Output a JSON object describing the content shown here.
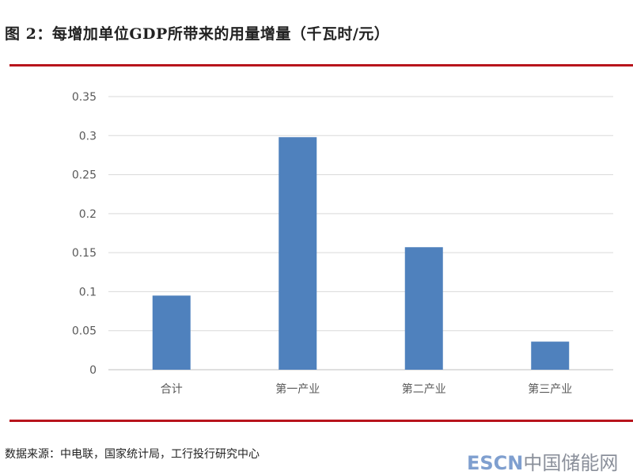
{
  "title": "图 2：每增加单位GDP所带来的用量增量（千瓦时/元）",
  "source": "数据来源：中电联，国家统计局，工行投行研究中心",
  "watermark": {
    "latin": "ESCN",
    "cn": "中国储能网"
  },
  "colors": {
    "bar": "#4f81bd",
    "rule": "#b8141c",
    "grid": "#d9d9d9"
  },
  "chart_data": {
    "type": "bar",
    "title": "每增加单位GDP所带来的用量增量（千瓦时/元）",
    "categories": [
      "合计",
      "第一产业",
      "第二产业",
      "第三产业"
    ],
    "values": [
      0.095,
      0.298,
      0.157,
      0.036
    ],
    "ylim": [
      0,
      0.35
    ],
    "yticks": [
      "0",
      "0.05",
      "0.1",
      "0.15",
      "0.2",
      "0.25",
      "0.3",
      "0.35"
    ],
    "xlabel": "",
    "ylabel": "",
    "grid": true,
    "legend": "none"
  }
}
